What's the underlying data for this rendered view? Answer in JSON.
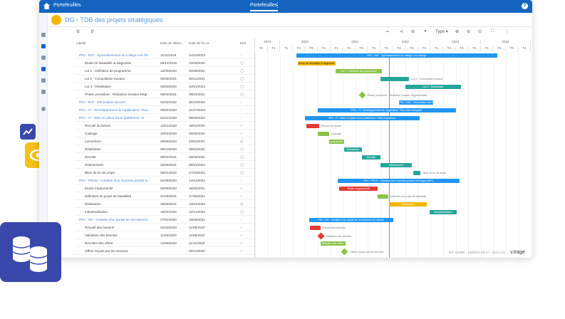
{
  "app": {
    "title": "Portefeuilles",
    "active_tab": "Portefeuilles",
    "menu_icon": "dots-vertical-icon",
    "help_icon": "help-icon"
  },
  "page": {
    "title": "DG - TDB des projets stratégiques"
  },
  "toolbar": {
    "type_label": "Type"
  },
  "columns": {
    "libelle": "Libellé",
    "date_debut": "Date de début...",
    "date_fin": "Date de fin co...",
    "etat": "Etat"
  },
  "timeline": {
    "years": [
      "2019",
      "2020",
      "2021",
      "2022",
      "2023",
      "2024"
    ],
    "quarters": [
      "T3",
      "T4",
      "T1",
      "T2",
      "T3",
      "T4",
      "T1",
      "T2",
      "T3",
      "T4",
      "T1",
      "T2",
      "T3",
      "T4",
      "T1",
      "T2",
      "T3",
      "T4",
      "T1",
      "T2",
      "T3",
      "T4",
      "T1"
    ]
  },
  "rows": [
    {
      "label": "PRJ - BAT - Agrandissement du collège Les Fla",
      "start": "11/11/2019",
      "end": "14/10/2023",
      "state": "-",
      "type": "proj"
    },
    {
      "label": "Etude de faisabilité & diagnostic",
      "start": "09/12/2019",
      "end": "12/09/2020",
      "state": "◯",
      "type": "task"
    },
    {
      "label": "Lot 1 - Définition de programme",
      "start": "12/09/2020",
      "end": "02/08/2021",
      "state": "◯",
      "type": "task"
    },
    {
      "label": "Lot 2 - Consultation travaux",
      "start": "06/06/2021",
      "end": "06/11/2021",
      "state": "◯",
      "type": "task"
    },
    {
      "label": "Lot 3 - Réalisation",
      "start": "02/03/2022",
      "end": "10/01/2023",
      "state": "◯",
      "type": "task"
    },
    {
      "label": "Phase procédure : Rédaction Dossier Régl",
      "start": "09/04/2021",
      "end": "09/04/2021",
      "state": "◯",
      "type": "task"
    },
    {
      "label": "PRJ - BAT - Rénovation site Est",
      "start": "01/02/2022",
      "end": "06/10/2022",
      "state": "-",
      "type": "proj"
    },
    {
      "label": "PRJ - IT - Développement de l'application \"Tout",
      "start": "05/04/2020",
      "end": "21/07/2023",
      "state": "-",
      "type": "proj"
    },
    {
      "label": "PRJ - IT - Mise en place d'une plateforme \"m",
      "start": "01/01/2020",
      "end": "09/08/2022",
      "state": "-",
      "type": "proj"
    },
    {
      "label": "Recueil du besoin",
      "start": "12/01/2020",
      "end": "18/04/2020",
      "state": "✓",
      "type": "task"
    },
    {
      "label": "Cadrage",
      "start": "10/04/2020",
      "end": "29/06/2020",
      "state": "✓",
      "type": "task"
    },
    {
      "label": "Lancement",
      "start": "29/06/2020",
      "end": "23/03/2021",
      "state": "◷",
      "type": "task"
    },
    {
      "label": "Réalisation",
      "start": "08/10/2020",
      "end": "06/02/2021",
      "state": "◯",
      "type": "task"
    },
    {
      "label": "Recette",
      "start": "06/02/2021",
      "end": "25/06/2021",
      "state": "◯",
      "type": "task"
    },
    {
      "label": "Déploiement",
      "start": "25/06/2021",
      "end": "09/01/2022",
      "state": "◯",
      "type": "task"
    },
    {
      "label": "Bilan de fin de projet",
      "start": "08/01/2022",
      "end": "17/03/2022",
      "state": "◯",
      "type": "task"
    },
    {
      "label": "PRJ - PROD - Création d'un nouveau produit te",
      "start": "01/06/2020",
      "end": "13/12/2022",
      "state": "-",
      "type": "proj"
    },
    {
      "label": "Etude d'opportunité",
      "start": "03/08/2020",
      "end": "16/05/2021",
      "state": "✓",
      "type": "task"
    },
    {
      "label": "Définition du projet de faisabilité",
      "start": "21/05/2021",
      "end": "17/08/2021",
      "state": "✓",
      "type": "task"
    },
    {
      "label": "Réalisation",
      "start": "26/08/2021",
      "end": "13/04/2022",
      "state": "◷",
      "type": "task"
    },
    {
      "label": "Industrialisation",
      "start": "16/04/2022",
      "end": "12/12/2022",
      "state": "◯",
      "type": "task"
    },
    {
      "label": "PRJ - RH - Création d'un portail de recrutement",
      "start": "27/02/2020",
      "end": "19/08/2021",
      "state": "-",
      "type": "proj"
    },
    {
      "label": "Recueil des besoins",
      "start": "01/03/2020",
      "end": "11/05/2020",
      "state": "✓",
      "type": "task"
    },
    {
      "label": "Validation des besoins",
      "start": "11/05/2020",
      "end": "11/05/2020",
      "state": "✓",
      "type": "milestone"
    },
    {
      "label": "Récultes des offres",
      "start": "12/05/2020",
      "end": "11/11/2020",
      "state": "✓",
      "type": "task"
    },
    {
      "label": "Offres reçues par les services",
      "start": "",
      "end": "28/10/2020",
      "state": "✓",
      "type": "milestone"
    }
  ],
  "bars": [
    {
      "row": 0,
      "label": "PRJ - BAT - Agrandissement du collège Les Orange",
      "color": "#2196f3",
      "start_q": 3.3,
      "end_q": 19.3,
      "label_pos": "in"
    },
    {
      "row": 1,
      "label": "Etude de faisabilité & diagnostic",
      "color": "#f2b705",
      "start_q": 3.4,
      "end_q": 6.4,
      "label_pos": "in",
      "dark": true
    },
    {
      "row": 2,
      "label": "Lot 1 - Définition de programme",
      "color": "#8bc34a",
      "start_q": 6.4,
      "end_q": 10.1,
      "label_pos": "in"
    },
    {
      "row": 3,
      "label": "Lot 2 - Consultation travaux",
      "color": "#26a69a",
      "start_q": 10.0,
      "end_q": 12.3,
      "label_pos": "out"
    },
    {
      "row": 4,
      "label": "Lot 3 - Réalisation",
      "color": "#26a69a",
      "start_q": 12.0,
      "end_q": 16.4,
      "label_pos": "in"
    },
    {
      "row": 5,
      "label": "Phase procédure : Rédaction Dossier Réglementaire",
      "color": "#8bc34a",
      "start_q": 8.5,
      "end_q": 8.9,
      "label_pos": "out",
      "milestone": true
    },
    {
      "row": 6,
      "label": "PRJ - BAT - Rénovation site Est",
      "color": "#2196f3",
      "start_q": 11.5,
      "end_q": 14.2,
      "label_pos": "in"
    },
    {
      "row": 7,
      "label": "PRJ - IT - Développement de l'application \"Tout-doin marques\"",
      "color": "#2196f3",
      "start_q": 5.0,
      "end_q": 16.0,
      "label_pos": "in"
    },
    {
      "row": 8,
      "label": "PRJ - IT - Mise en place d'une plateforme \"multi-expédition\"",
      "color": "#2196f3",
      "start_q": 4.0,
      "end_q": 13.1,
      "label_pos": "in"
    },
    {
      "row": 9,
      "label": "Recueil du besoin",
      "color": "#e53935",
      "start_q": 4.1,
      "end_q": 5.1,
      "label_pos": "out"
    },
    {
      "row": 10,
      "label": "Cadrage",
      "color": "#8bc34a",
      "start_q": 5.0,
      "end_q": 5.9,
      "label_pos": "out"
    },
    {
      "row": 11,
      "label": "Lancement",
      "color": "#8bc34a",
      "start_q": 5.9,
      "end_q": 7.1,
      "label_pos": "in"
    },
    {
      "row": 12,
      "label": "Réalisation",
      "color": "#26a69a",
      "start_q": 7.1,
      "end_q": 8.5,
      "label_pos": "in"
    },
    {
      "row": 13,
      "label": "Recette",
      "color": "#26a69a",
      "start_q": 8.5,
      "end_q": 10.0,
      "label_pos": "in"
    },
    {
      "row": 14,
      "label": "Déploiement",
      "color": "#26a69a",
      "start_q": 10.0,
      "end_q": 12.5,
      "label_pos": "in"
    },
    {
      "row": 15,
      "label": "Bilan de fin de projet",
      "color": "#26a69a",
      "start_q": 12.6,
      "end_q": 13.2,
      "label_pos": "out"
    },
    {
      "row": 16,
      "label": "PRJ - PROD - Création d'un nouveau produit technique [NPT]",
      "color": "#2196f3",
      "start_q": 6.6,
      "end_q": 16.3,
      "label_pos": "in"
    },
    {
      "row": 17,
      "label": "Étude d'opportunité",
      "color": "#e53935",
      "start_q": 6.7,
      "end_q": 9.8,
      "label_pos": "in"
    },
    {
      "row": 18,
      "label": "Définition du projet de faisabilité",
      "color": "#8bc34a",
      "start_q": 9.8,
      "end_q": 10.6,
      "label_pos": "out"
    },
    {
      "row": 19,
      "label": "Réalisation",
      "color": "#f2b705",
      "start_q": 10.7,
      "end_q": 13.7,
      "label_pos": "in"
    },
    {
      "row": 20,
      "label": "Industrialisation",
      "color": "#26a69a",
      "start_q": 13.9,
      "end_q": 16.1,
      "label_pos": "in"
    },
    {
      "row": 21,
      "label": "PRJ - RH - Création d'un portail de recrutement en interne",
      "color": "#2196f3",
      "start_q": 4.3,
      "end_q": 11.0,
      "label_pos": "in"
    },
    {
      "row": 22,
      "label": "Recueil des besoins",
      "color": "#e53935",
      "start_q": 4.4,
      "end_q": 5.2,
      "label_pos": "out"
    },
    {
      "row": 23,
      "label": "Validation des besoins",
      "color": "#e53935",
      "start_q": 5.2,
      "end_q": 5.2,
      "label_pos": "out",
      "milestone": true
    },
    {
      "row": 24,
      "label": "Récoltes des offres",
      "color": "#8bc34a",
      "start_q": 5.2,
      "end_q": 7.2,
      "label_pos": "in"
    },
    {
      "row": 25,
      "label": "Offres reçues par les services",
      "color": "#8bc34a",
      "start_q": 7.1,
      "end_q": 7.1,
      "label_pos": "out",
      "milestone": true
    }
  ],
  "today_q": 10.7,
  "footer": {
    "info": "INT ADMIN - 19/05/21 09:47 - v5.5.0.12",
    "brand": "v.trage"
  }
}
